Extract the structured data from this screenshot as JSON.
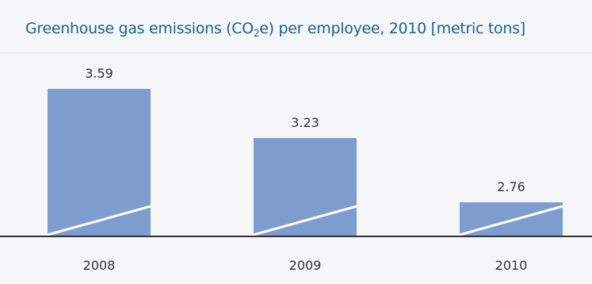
{
  "title": {
    "before_sub": "Greenhouse gas emissions (CO",
    "sub": "2",
    "after_sub": "e) per employee, 2010 [metric tons]"
  },
  "colors": {
    "title": "#1d5f95",
    "bar": "#7f9ccf",
    "axis": "#333333",
    "background": "#f5f6f7"
  },
  "chart_data": {
    "type": "bar",
    "title": "Greenhouse gas emissions (CO2e) per employee, 2010 [metric tons]",
    "categories": [
      "2008",
      "2009",
      "2010"
    ],
    "values": [
      3.59,
      3.23,
      2.76
    ],
    "value_labels": [
      "3.59",
      "3.23",
      "2.76"
    ],
    "xlabel": "",
    "ylabel": "",
    "legend": "none",
    "grid": false,
    "axis_break": true
  }
}
